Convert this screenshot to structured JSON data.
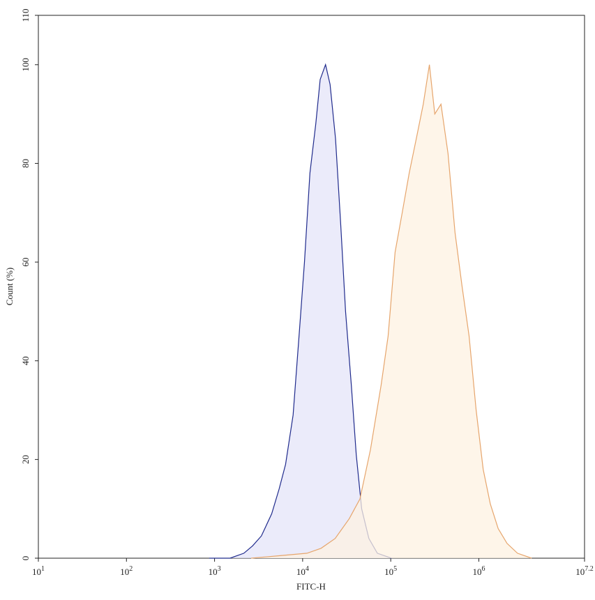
{
  "chart_data": {
    "type": "area",
    "xlabel": "FITC-H",
    "ylabel": "Count (%)",
    "xscale": "log",
    "xlim": [
      10,
      15848931.9
    ],
    "xticks": [
      {
        "value": 10,
        "label": "10",
        "exponent": "1"
      },
      {
        "value": 100,
        "label": "10",
        "exponent": "2"
      },
      {
        "value": 1000,
        "label": "10",
        "exponent": "3"
      },
      {
        "value": 10000,
        "label": "10",
        "exponent": "4"
      },
      {
        "value": 100000,
        "label": "10",
        "exponent": "5"
      },
      {
        "value": 1000000,
        "label": "10",
        "exponent": "6"
      },
      {
        "value": 15848931.9,
        "label": "10",
        "exponent": "7.2"
      }
    ],
    "ylim": [
      0,
      110
    ],
    "yticks": [
      0,
      20,
      40,
      60,
      80,
      100,
      110
    ],
    "series": [
      {
        "color": "#1f2a8c",
        "fill": "#e4e4f8",
        "x": [
          870,
          1500,
          2150,
          2700,
          3400,
          4450,
          5400,
          6400,
          7800,
          9100,
          10500,
          12100,
          14100,
          15800,
          18200,
          20500,
          23600,
          27000,
          30700,
          35700,
          40600,
          46800,
          56400,
          70500,
          102000
        ],
        "values": [
          0,
          0,
          1,
          2.5,
          4.5,
          9,
          14,
          19,
          29,
          45,
          60,
          78,
          88,
          97,
          100,
          96,
          85,
          68,
          50,
          35,
          21,
          10,
          4,
          1,
          0
        ]
      },
      {
        "color": "#e6a56c",
        "fill": "#fdf1e2",
        "x": [
          2600,
          5400,
          11200,
          16200,
          23400,
          33800,
          44700,
          58900,
          77600,
          93300,
          112000,
          135000,
          162000,
          195000,
          234000,
          275000,
          316000,
          372000,
          447000,
          537000,
          646000,
          776000,
          933000,
          1120000,
          1350000,
          1660000,
          2090000,
          2750000,
          3980000
        ],
        "values": [
          0,
          0.5,
          1,
          2,
          4,
          8,
          12,
          22,
          35,
          45,
          62,
          70,
          78,
          85,
          92,
          100,
          90,
          92,
          82,
          66,
          55,
          45,
          30,
          18,
          11,
          6,
          3,
          1,
          0
        ]
      }
    ]
  }
}
